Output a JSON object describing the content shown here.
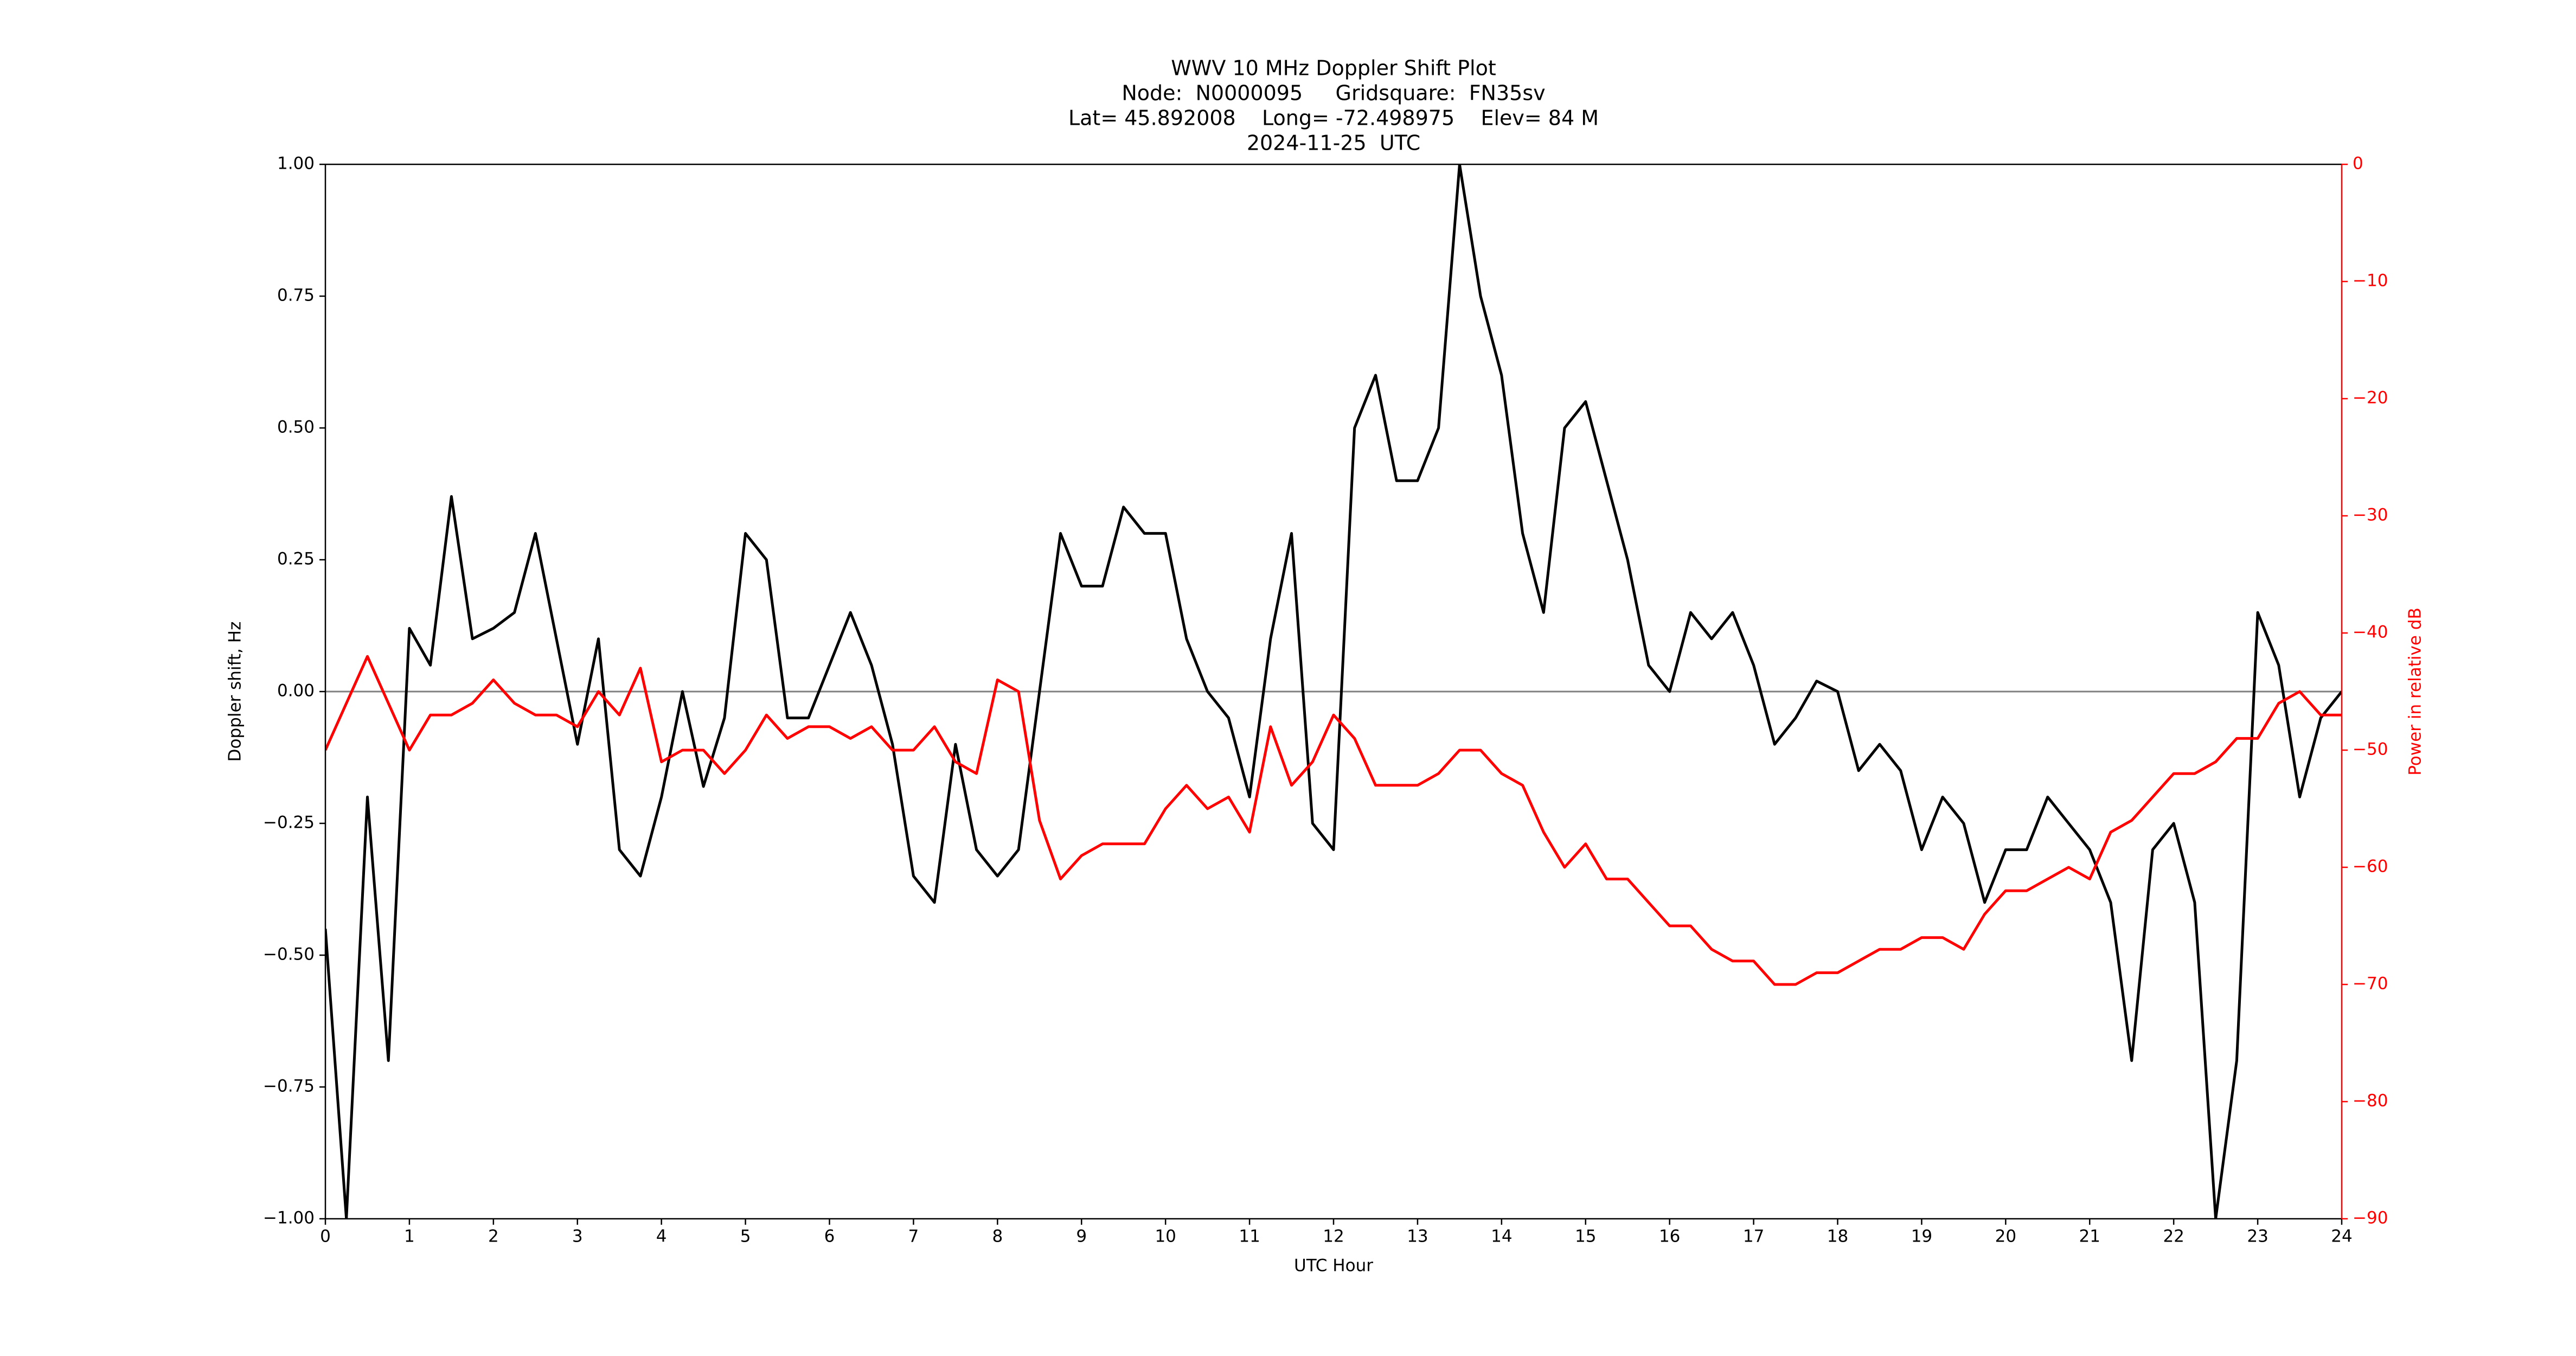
{
  "chart_data": {
    "type": "line",
    "title": [
      "WWV 10 MHz Doppler Shift Plot",
      "Node:  N0000095     Gridsquare:  FN35sv",
      "Lat= 45.892008    Long= -72.498975    Elev= 84 M",
      "2024-11-25  UTC"
    ],
    "xlabel": "UTC Hour",
    "ylabel": "Doppler shift, Hz",
    "y2label": "Power in relative dB",
    "xlim": [
      0,
      24
    ],
    "xticks": [
      0,
      1,
      2,
      3,
      4,
      5,
      6,
      7,
      8,
      9,
      10,
      11,
      12,
      13,
      14,
      15,
      16,
      17,
      18,
      19,
      20,
      21,
      22,
      23,
      24
    ],
    "ylim": [
      -1,
      1
    ],
    "yticks": [
      {
        "value": -1,
        "label": "−1.00"
      },
      {
        "value": -0.75,
        "label": "−0.75"
      },
      {
        "value": -0.5,
        "label": "−0.50"
      },
      {
        "value": -0.25,
        "label": "−0.25"
      },
      {
        "value": 0,
        "label": "0.00"
      },
      {
        "value": 0.25,
        "label": "0.25"
      },
      {
        "value": 0.5,
        "label": "0.50"
      },
      {
        "value": 0.75,
        "label": "0.75"
      },
      {
        "value": 1,
        "label": "1.00"
      }
    ],
    "y2lim": [
      -90,
      0
    ],
    "y2ticks": [
      {
        "value": -90,
        "label": "−90"
      },
      {
        "value": -80,
        "label": "−80"
      },
      {
        "value": -70,
        "label": "−70"
      },
      {
        "value": -60,
        "label": "−60"
      },
      {
        "value": -50,
        "label": "−50"
      },
      {
        "value": -40,
        "label": "−40"
      },
      {
        "value": -30,
        "label": "−30"
      },
      {
        "value": -20,
        "label": "−20"
      },
      {
        "value": -10,
        "label": "−10"
      },
      0
    ],
    "y2color": "#ff0000",
    "axhline": 0,
    "x": [
      0,
      0.25,
      0.5,
      0.75,
      1,
      1.25,
      1.5,
      1.75,
      2,
      2.25,
      2.5,
      2.75,
      3,
      3.25,
      3.5,
      3.75,
      4,
      4.25,
      4.5,
      4.75,
      5,
      5.25,
      5.5,
      5.75,
      6,
      6.25,
      6.5,
      6.75,
      7,
      7.25,
      7.5,
      7.75,
      8,
      8.25,
      8.5,
      8.75,
      9,
      9.25,
      9.5,
      9.75,
      10,
      10.25,
      10.5,
      10.75,
      11,
      11.25,
      11.5,
      11.75,
      12,
      12.25,
      12.5,
      12.75,
      13,
      13.25,
      13.5,
      13.75,
      14,
      14.25,
      14.5,
      14.75,
      15,
      15.25,
      15.5,
      15.75,
      16,
      16.25,
      16.5,
      16.75,
      17,
      17.25,
      17.5,
      17.75,
      18,
      18.25,
      18.5,
      18.75,
      19,
      19.25,
      19.5,
      19.75,
      20,
      20.25,
      20.5,
      20.75,
      21,
      21.25,
      21.5,
      21.75,
      22,
      22.25,
      22.5,
      22.75,
      23,
      23.25,
      23.5,
      23.75,
      24
    ],
    "series": [
      {
        "name": "Doppler shift",
        "color": "#000000",
        "values": [
          -0.45,
          -1.0,
          -0.2,
          -0.7,
          0.12,
          0.05,
          0.37,
          0.1,
          0.12,
          0.15,
          0.3,
          0.1,
          -0.1,
          0.1,
          -0.3,
          -0.35,
          -0.2,
          0.0,
          -0.18,
          -0.05,
          0.3,
          0.25,
          -0.05,
          -0.05,
          0.05,
          0.15,
          0.05,
          -0.1,
          -0.35,
          -0.4,
          -0.1,
          -0.3,
          -0.35,
          -0.3,
          0.0,
          0.3,
          0.2,
          0.2,
          0.35,
          0.3,
          0.3,
          0.1,
          0.0,
          -0.05,
          -0.2,
          0.1,
          0.3,
          -0.25,
          -0.3,
          0.5,
          0.6,
          0.4,
          0.4,
          0.5,
          1.0,
          0.75,
          0.6,
          0.3,
          0.15,
          0.5,
          0.55,
          0.4,
          0.25,
          0.05,
          0.0,
          0.15,
          0.1,
          0.15,
          0.05,
          -0.1,
          -0.05,
          0.02,
          0.0,
          -0.15,
          -0.1,
          -0.15,
          -0.3,
          -0.2,
          -0.25,
          -0.4,
          -0.3,
          -0.3,
          -0.2,
          -0.25,
          -0.3,
          -0.4,
          -0.7,
          -0.3,
          -0.25,
          -0.4,
          -1.0,
          -0.7,
          0.15,
          0.05,
          -0.2,
          -0.05,
          0.0
        ]
      },
      {
        "name": "Power",
        "color": "#ff0000",
        "axis": "y2",
        "values": [
          -50,
          -46,
          -42,
          -46,
          -50,
          -47,
          -47,
          -46,
          -44,
          -46,
          -47,
          -47,
          -48,
          -45,
          -47,
          -43,
          -51,
          -50,
          -50,
          -52,
          -50,
          -47,
          -49,
          -48,
          -48,
          -49,
          -48,
          -50,
          -50,
          -48,
          -51,
          -52,
          -44,
          -45,
          -56,
          -61,
          -59,
          -58,
          -58,
          -58,
          -55,
          -53,
          -55,
          -54,
          -57,
          -48,
          -53,
          -51,
          -47,
          -49,
          -53,
          -53,
          -53,
          -52,
          -50,
          -50,
          -52,
          -53,
          -57,
          -60,
          -58,
          -61,
          -61,
          -63,
          -65,
          -65,
          -67,
          -68,
          -68,
          -70,
          -70,
          -69,
          -69,
          -68,
          -67,
          -67,
          -66,
          -66,
          -67,
          -64,
          -62,
          -62,
          -61,
          -60,
          -61,
          -57,
          -56,
          -54,
          -52,
          -52,
          -51,
          -49,
          -49,
          -46,
          -45,
          -47,
          -47
        ]
      }
    ]
  }
}
